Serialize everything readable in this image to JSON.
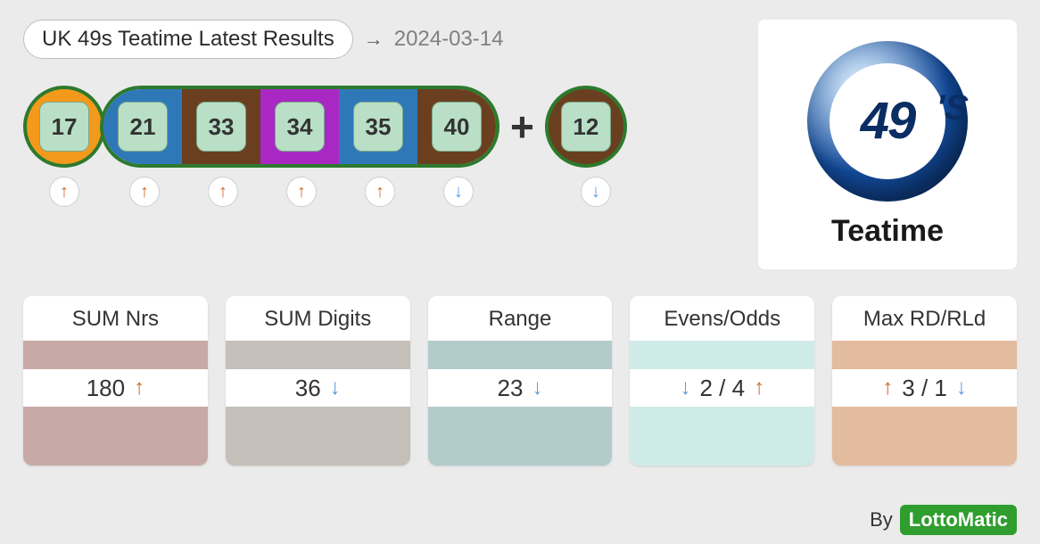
{
  "header": {
    "title": "UK 49s Teatime Latest Results",
    "date": "2024-03-14",
    "arrow_glyph": "→"
  },
  "logo": {
    "number": "49",
    "suffix": "'S",
    "caption": "Teatime"
  },
  "balls": {
    "main": [
      {
        "value": "17",
        "bg": "#f39a1c",
        "trend": "up",
        "special": false
      },
      {
        "value": "21",
        "bg": "#2f78b8",
        "trend": "up",
        "special": false
      },
      {
        "value": "33",
        "bg": "#6a3f1f",
        "trend": "up",
        "special": false
      },
      {
        "value": "34",
        "bg": "#a928c4",
        "trend": "up",
        "special": true
      },
      {
        "value": "35",
        "bg": "#2f78b8",
        "trend": "up",
        "special": false
      },
      {
        "value": "40",
        "bg": "#6a3f1f",
        "trend": "down",
        "special": false
      }
    ],
    "plus": "+",
    "bonus": {
      "value": "12",
      "bg": "#6a3f1f",
      "trend": "down"
    }
  },
  "stats": [
    {
      "title": "SUM Nrs",
      "color": "#c7aaa6",
      "value": "180",
      "left_arrow": null,
      "right_arrow": "up",
      "value2": null
    },
    {
      "title": "SUM Digits",
      "color": "#c5bfb9",
      "value": "36",
      "left_arrow": null,
      "right_arrow": "down",
      "value2": null
    },
    {
      "title": "Range",
      "color": "#b1cbcb",
      "value": "23",
      "left_arrow": null,
      "right_arrow": "down",
      "value2": null
    },
    {
      "title": "Evens/Odds",
      "color": "#cfebe8",
      "value": "2 / 4",
      "left_arrow": "down",
      "right_arrow": "up",
      "value2": null
    },
    {
      "title": "Max RD/RLd",
      "color": "#e3bb9e",
      "value": "3 / 1",
      "left_arrow": "up",
      "right_arrow": "down",
      "value2": null
    }
  ],
  "footer": {
    "by": "By",
    "brand": "LottoMatic"
  },
  "glyphs": {
    "up": "↑",
    "down": "↓"
  }
}
